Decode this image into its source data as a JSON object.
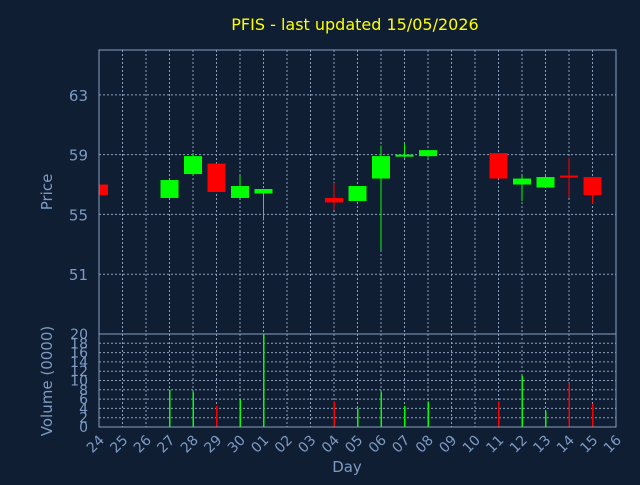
{
  "chart_data": [
    {
      "type": "candlestick",
      "title": "PFIS - last updated 15/05/2026",
      "ylabel": "Price",
      "ylim": [
        47,
        66
      ],
      "y_ticks": [
        51,
        55,
        59,
        63
      ],
      "grid": true,
      "candles": [
        {
          "day": "24",
          "open": 57.0,
          "close": 56.3,
          "high": 57.0,
          "low": 56.3,
          "color": "red"
        },
        {
          "day": "27",
          "open": 56.1,
          "close": 57.3,
          "high": 57.3,
          "low": 56.1,
          "color": "green"
        },
        {
          "day": "28",
          "open": 57.7,
          "close": 58.9,
          "high": 59.1,
          "low": 57.6,
          "color": "green"
        },
        {
          "day": "29",
          "open": 58.4,
          "close": 56.5,
          "high": 58.4,
          "low": 56.5,
          "color": "red"
        },
        {
          "day": "30",
          "open": 56.1,
          "close": 56.9,
          "high": 57.6,
          "low": 56.1,
          "color": "green"
        },
        {
          "day": "01",
          "open": 56.4,
          "close": 56.7,
          "high": 56.7,
          "low": 54.6,
          "color": "green"
        },
        {
          "day": "04",
          "open": 56.1,
          "close": 55.8,
          "high": 57.1,
          "low": 55.3,
          "color": "red"
        },
        {
          "day": "05",
          "open": 55.9,
          "close": 56.9,
          "high": 56.9,
          "low": 55.9,
          "color": "green"
        },
        {
          "day": "06",
          "open": 57.4,
          "close": 58.9,
          "high": 59.6,
          "low": 52.6,
          "color": "green"
        },
        {
          "day": "07",
          "open": 58.9,
          "close": 59.0,
          "high": 59.7,
          "low": 58.8,
          "color": "green"
        },
        {
          "day": "08",
          "open": 58.9,
          "close": 59.3,
          "high": 59.3,
          "low": 58.8,
          "color": "green"
        },
        {
          "day": "11",
          "open": 59.1,
          "close": 57.4,
          "high": 59.1,
          "low": 57.4,
          "color": "red"
        },
        {
          "day": "12",
          "open": 57.0,
          "close": 57.4,
          "high": 57.6,
          "low": 55.9,
          "color": "green"
        },
        {
          "day": "13",
          "open": 56.8,
          "close": 57.5,
          "high": 57.7,
          "low": 56.8,
          "color": "green"
        },
        {
          "day": "14",
          "open": 57.6,
          "close": 57.6,
          "high": 58.8,
          "low": 56.1,
          "color": "red"
        },
        {
          "day": "15",
          "open": 57.5,
          "close": 56.3,
          "high": 57.5,
          "low": 55.7,
          "color": "red"
        }
      ]
    },
    {
      "type": "bar",
      "ylabel": "Volume (0000)",
      "ylim": [
        0,
        20
      ],
      "y_ticks": [
        0,
        2,
        4,
        6,
        8,
        10,
        12,
        14,
        16,
        18,
        20
      ],
      "grid": true,
      "xlabel": "Day",
      "categories": [
        "24",
        "25",
        "26",
        "27",
        "28",
        "29",
        "30",
        "01",
        "02",
        "03",
        "04",
        "05",
        "06",
        "07",
        "08",
        "09",
        "10",
        "11",
        "12",
        "13",
        "14",
        "15",
        "16"
      ],
      "bars": [
        {
          "day": "24",
          "value": 0,
          "color": "red"
        },
        {
          "day": "27",
          "value": 8,
          "color": "green"
        },
        {
          "day": "28",
          "value": 7.5,
          "color": "green"
        },
        {
          "day": "29",
          "value": 4.5,
          "color": "red"
        },
        {
          "day": "30",
          "value": 6,
          "color": "green"
        },
        {
          "day": "01",
          "value": 20,
          "color": "green"
        },
        {
          "day": "04",
          "value": 5.5,
          "color": "red"
        },
        {
          "day": "05",
          "value": 4,
          "color": "green"
        },
        {
          "day": "06",
          "value": 7.5,
          "color": "green"
        },
        {
          "day": "07",
          "value": 4.5,
          "color": "green"
        },
        {
          "day": "08",
          "value": 5.5,
          "color": "green"
        },
        {
          "day": "11",
          "value": 5.5,
          "color": "red"
        },
        {
          "day": "12",
          "value": 11,
          "color": "green"
        },
        {
          "day": "13",
          "value": 3.5,
          "color": "green"
        },
        {
          "day": "14",
          "value": 9.5,
          "color": "red"
        },
        {
          "day": "15",
          "value": 5,
          "color": "red"
        }
      ]
    }
  ],
  "colors": {
    "up": "#00ff00",
    "down": "#ff0000",
    "background": "#0f1e33",
    "grid": "#8aa0bd",
    "title": "#ffff00",
    "axis_text": "#7d9bc4"
  }
}
